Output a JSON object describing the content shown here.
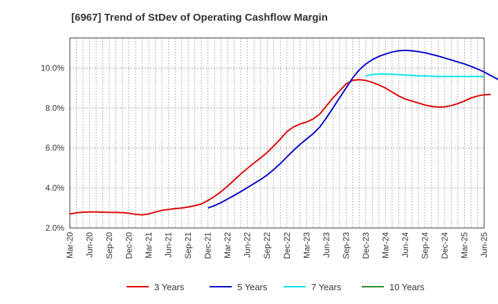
{
  "chart_data": {
    "type": "line",
    "title": "[6967]  Trend of StDev of Operating Cashflow Margin",
    "xlabel": "",
    "ylabel": "",
    "ylim": [
      2.0,
      11.5
    ],
    "y_ticks": [
      "2.0%",
      "4.0%",
      "6.0%",
      "8.0%",
      "10.0%"
    ],
    "y_tick_values": [
      2,
      4,
      6,
      8,
      10
    ],
    "x_ticks": [
      "Mar-20",
      "Jun-20",
      "Sep-20",
      "Dec-20",
      "Mar-21",
      "Jun-21",
      "Sep-21",
      "Dec-21",
      "Mar-22",
      "Jun-22",
      "Sep-22",
      "Dec-22",
      "Mar-23",
      "Jun-23",
      "Sep-23",
      "Dec-23",
      "Mar-24",
      "Jun-24",
      "Sep-24",
      "Dec-24",
      "Mar-25",
      "Jun-25"
    ],
    "grid": true,
    "legend_position": "bottom",
    "series": [
      {
        "name": "3 Years",
        "color": "#e00000",
        "points": [
          [
            "Mar-20",
            2.7
          ],
          [
            "Apr-20",
            2.76
          ],
          [
            "May-20",
            2.79
          ],
          [
            "Jun-20",
            2.8
          ],
          [
            "Jul-20",
            2.8
          ],
          [
            "Aug-20",
            2.79
          ],
          [
            "Sep-20",
            2.78
          ],
          [
            "Oct-20",
            2.78
          ],
          [
            "Nov-20",
            2.77
          ],
          [
            "Dec-20",
            2.74
          ],
          [
            "Jan-21",
            2.68
          ],
          [
            "Feb-21",
            2.66
          ],
          [
            "Mar-21",
            2.7
          ],
          [
            "Apr-21",
            2.8
          ],
          [
            "May-21",
            2.88
          ],
          [
            "Jun-21",
            2.93
          ],
          [
            "Jul-21",
            2.97
          ],
          [
            "Aug-21",
            3.0
          ],
          [
            "Sep-21",
            3.05
          ],
          [
            "Oct-21",
            3.12
          ],
          [
            "Nov-21",
            3.2
          ],
          [
            "Dec-21",
            3.38
          ],
          [
            "Jan-22",
            3.58
          ],
          [
            "Feb-22",
            3.82
          ],
          [
            "Mar-22",
            4.1
          ],
          [
            "Apr-22",
            4.4
          ],
          [
            "May-22",
            4.7
          ],
          [
            "Jun-22",
            4.98
          ],
          [
            "Jul-22",
            5.25
          ],
          [
            "Aug-22",
            5.5
          ],
          [
            "Sep-22",
            5.78
          ],
          [
            "Oct-22",
            6.1
          ],
          [
            "Nov-22",
            6.45
          ],
          [
            "Dec-22",
            6.82
          ],
          [
            "Jan-23",
            7.05
          ],
          [
            "Feb-23",
            7.2
          ],
          [
            "Mar-23",
            7.3
          ],
          [
            "Apr-23",
            7.45
          ],
          [
            "May-23",
            7.7
          ],
          [
            "Jun-23",
            8.1
          ],
          [
            "Jul-23",
            8.5
          ],
          [
            "Aug-23",
            8.85
          ],
          [
            "Sep-23",
            9.2
          ],
          [
            "Oct-23",
            9.38
          ],
          [
            "Nov-23",
            9.42
          ],
          [
            "Dec-23",
            9.38
          ],
          [
            "Jan-24",
            9.28
          ],
          [
            "Feb-24",
            9.15
          ],
          [
            "Mar-24",
            9.0
          ],
          [
            "Apr-24",
            8.8
          ],
          [
            "May-24",
            8.6
          ],
          [
            "Jun-24",
            8.45
          ],
          [
            "Jul-24",
            8.35
          ],
          [
            "Aug-24",
            8.25
          ],
          [
            "Sep-24",
            8.15
          ],
          [
            "Oct-24",
            8.08
          ],
          [
            "Nov-24",
            8.05
          ],
          [
            "Dec-24",
            8.06
          ],
          [
            "Jan-25",
            8.12
          ],
          [
            "Feb-25",
            8.22
          ],
          [
            "Mar-25",
            8.35
          ],
          [
            "Apr-25",
            8.5
          ],
          [
            "May-25",
            8.6
          ],
          [
            "Jun-25",
            8.66
          ],
          [
            "Jul-25",
            8.68
          ]
        ]
      },
      {
        "name": "5 Years",
        "color": "#0000cc",
        "points": [
          [
            "Dec-21",
            3.0
          ],
          [
            "Jan-22",
            3.12
          ],
          [
            "Feb-22",
            3.27
          ],
          [
            "Mar-22",
            3.45
          ],
          [
            "Apr-22",
            3.63
          ],
          [
            "May-22",
            3.82
          ],
          [
            "Jun-22",
            4.02
          ],
          [
            "Jul-22",
            4.22
          ],
          [
            "Aug-22",
            4.42
          ],
          [
            "Sep-22",
            4.65
          ],
          [
            "Oct-22",
            4.92
          ],
          [
            "Nov-22",
            5.22
          ],
          [
            "Dec-22",
            5.55
          ],
          [
            "Jan-23",
            5.88
          ],
          [
            "Feb-23",
            6.18
          ],
          [
            "Mar-23",
            6.45
          ],
          [
            "Apr-23",
            6.72
          ],
          [
            "May-23",
            7.05
          ],
          [
            "Jun-23",
            7.5
          ],
          [
            "Jul-23",
            8.0
          ],
          [
            "Aug-23",
            8.5
          ],
          [
            "Sep-23",
            9.0
          ],
          [
            "Oct-23",
            9.5
          ],
          [
            "Nov-23",
            9.9
          ],
          [
            "Dec-23",
            10.2
          ],
          [
            "Jan-24",
            10.42
          ],
          [
            "Feb-24",
            10.58
          ],
          [
            "Mar-24",
            10.7
          ],
          [
            "Apr-24",
            10.8
          ],
          [
            "May-24",
            10.86
          ],
          [
            "Jun-24",
            10.88
          ],
          [
            "Jul-24",
            10.86
          ],
          [
            "Aug-24",
            10.82
          ],
          [
            "Sep-24",
            10.76
          ],
          [
            "Oct-24",
            10.68
          ],
          [
            "Nov-24",
            10.6
          ],
          [
            "Dec-24",
            10.5
          ],
          [
            "Jan-25",
            10.4
          ],
          [
            "Feb-25",
            10.3
          ],
          [
            "Mar-25",
            10.2
          ],
          [
            "Apr-25",
            10.08
          ],
          [
            "May-25",
            9.95
          ],
          [
            "Jun-25",
            9.8
          ],
          [
            "Jul-25",
            9.62
          ],
          [
            "Aug-25",
            9.45
          ],
          [
            "Sep-25",
            9.22
          ]
        ]
      },
      {
        "name": "7 Years",
        "color": "#00e5ee",
        "points": [
          [
            "Dec-23",
            9.6
          ],
          [
            "Jan-24",
            9.68
          ],
          [
            "Feb-24",
            9.7
          ],
          [
            "Mar-24",
            9.7
          ],
          [
            "Apr-24",
            9.69
          ],
          [
            "May-24",
            9.67
          ],
          [
            "Jun-24",
            9.65
          ],
          [
            "Jul-24",
            9.63
          ],
          [
            "Aug-24",
            9.61
          ],
          [
            "Sep-24",
            9.6
          ],
          [
            "Oct-24",
            9.59
          ],
          [
            "Nov-24",
            9.58
          ],
          [
            "Dec-24",
            9.58
          ],
          [
            "Jan-25",
            9.58
          ],
          [
            "Feb-25",
            9.58
          ],
          [
            "Mar-25",
            9.58
          ],
          [
            "Apr-25",
            9.58
          ],
          [
            "May-25",
            9.58
          ],
          [
            "Jun-25",
            9.57
          ]
        ]
      },
      {
        "name": "10 Years",
        "color": "#228b22",
        "points": []
      }
    ]
  }
}
